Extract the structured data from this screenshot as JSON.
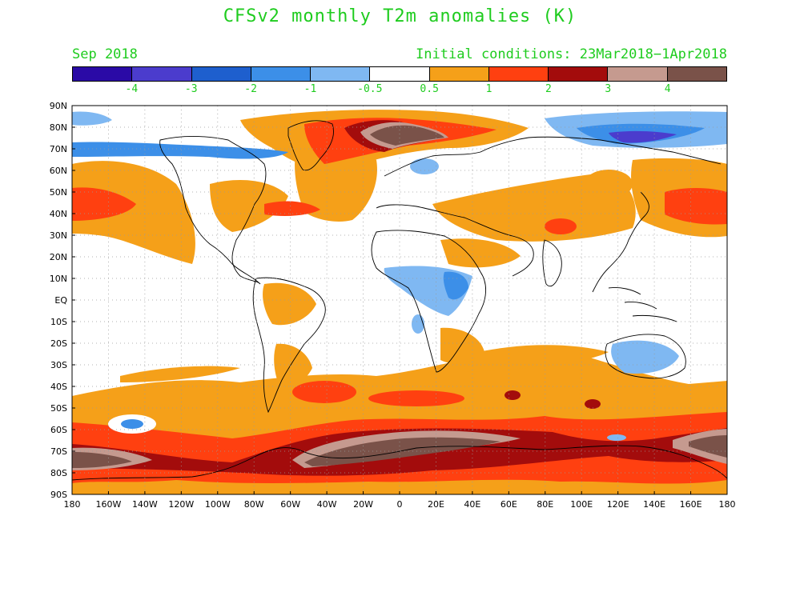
{
  "title": "CFSv2 monthly T2m anomalies (K)",
  "month_label": "Sep 2018",
  "init_label": "Initial conditions: 23Mar2018−1Apr2018",
  "colors": {
    "title": "#1fcc1f",
    "label_green": "#1fcc1f",
    "palette": [
      "#2a0aa6",
      "#4b3ccd",
      "#1e5fce",
      "#3c8fe8",
      "#7fb8f2",
      "#ffffff",
      "#f5a019",
      "#ff4010",
      "#a30c0c",
      "#c59a8f",
      "#7a5249"
    ],
    "land_outline": "#000000",
    "grid": "#9a9a9a"
  },
  "colorbar": {
    "labels": [
      "-4",
      "-3",
      "-2",
      "-1",
      "-0.5",
      "0.5",
      "1",
      "2",
      "3",
      "4"
    ]
  },
  "axes": {
    "lat_labels": [
      "90N",
      "80N",
      "70N",
      "60N",
      "50N",
      "40N",
      "30N",
      "20N",
      "10N",
      "EQ",
      "10S",
      "20S",
      "30S",
      "40S",
      "50S",
      "60S",
      "70S",
      "80S",
      "90S"
    ],
    "lon_labels": [
      "180",
      "160W",
      "140W",
      "120W",
      "100W",
      "80W",
      "60W",
      "40W",
      "20W",
      "0",
      "20E",
      "40E",
      "60E",
      "80E",
      "100E",
      "120E",
      "140E",
      "160E",
      "180"
    ]
  },
  "map_data": {
    "projection": "equirectangular",
    "lon_range": [
      -180,
      180
    ],
    "lat_range": [
      -90,
      90
    ],
    "anomaly_regions": [
      {
        "name": "southern-ocean-band",
        "level": "0.5 to 1",
        "lon": [
          -180,
          180
        ],
        "lat": [
          -90,
          -45
        ]
      },
      {
        "name": "southern-ocean-strong",
        "level": "1 to 2",
        "lon": [
          -180,
          180
        ],
        "lat": [
          -80,
          -55
        ]
      },
      {
        "name": "weddell-sea-maximum",
        "level": "3 to 4",
        "lon": [
          -60,
          40
        ],
        "lat": [
          -72,
          -60
        ]
      },
      {
        "name": "ross-sea-maximum",
        "level": "above 4",
        "lon": [
          -180,
          -140
        ],
        "lat": [
          -75,
          -65
        ]
      },
      {
        "name": "greenland-arctic-maximum",
        "level": "above 4",
        "lon": [
          -30,
          20
        ],
        "lat": [
          70,
          85
        ]
      },
      {
        "name": "siberian-arctic-cold",
        "level": "-3 to -2",
        "lon": [
          110,
          170
        ],
        "lat": [
          70,
          80
        ]
      },
      {
        "name": "canadian-arctic-cold",
        "level": "-2 to -1",
        "lon": [
          -180,
          -95
        ],
        "lat": [
          68,
          78
        ]
      },
      {
        "name": "east-africa-cold",
        "level": "-1 to -0.5",
        "lon": [
          5,
          40
        ],
        "lat": [
          -15,
          15
        ]
      },
      {
        "name": "australia-cold",
        "level": "-1 to -0.5",
        "lon": [
          115,
          152
        ],
        "lat": [
          -32,
          -18
        ]
      },
      {
        "name": "north-pacific-warm",
        "level": "1 to 2",
        "lon": [
          -180,
          -140
        ],
        "lat": [
          35,
          55
        ]
      },
      {
        "name": "north-atlantic-warm",
        "level": "0.5 to 1",
        "lon": [
          -60,
          0
        ],
        "lat": [
          30,
          60
        ]
      },
      {
        "name": "eurasia-warm",
        "level": "0.5 to 1",
        "lon": [
          30,
          140
        ],
        "lat": [
          30,
          55
        ]
      },
      {
        "name": "south-america-warm",
        "level": "0.5 to 1",
        "lon": [
          -65,
          -45
        ],
        "lat": [
          -20,
          5
        ]
      }
    ]
  }
}
